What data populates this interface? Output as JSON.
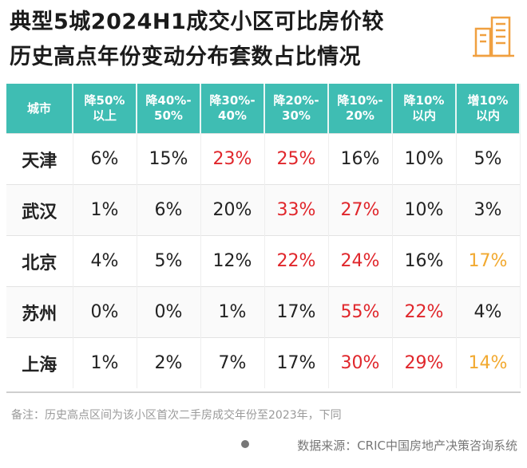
{
  "chart_data": {
    "type": "table",
    "title_line1": "典型5城2024H1成交小区可比房价较",
    "title_line2": "历史高点年份变动分布套数占比情况",
    "columns": [
      "城市",
      "降50%以上",
      "降40%-50%",
      "降30%-40%",
      "降20%-30%",
      "降10%-20%",
      "降10%以内",
      "增10%以内"
    ],
    "rows": [
      {
        "city": "天津",
        "values": [
          "6%",
          "15%",
          "23%",
          "25%",
          "16%",
          "10%",
          "5%"
        ],
        "highlight": [
          "",
          "",
          "red",
          "red",
          "",
          "",
          ""
        ]
      },
      {
        "city": "武汉",
        "values": [
          "1%",
          "6%",
          "20%",
          "33%",
          "27%",
          "10%",
          "3%"
        ],
        "highlight": [
          "",
          "",
          "",
          "red",
          "red",
          "",
          ""
        ]
      },
      {
        "city": "北京",
        "values": [
          "4%",
          "5%",
          "12%",
          "22%",
          "24%",
          "16%",
          "17%"
        ],
        "highlight": [
          "",
          "",
          "",
          "red",
          "red",
          "",
          "orange"
        ]
      },
      {
        "city": "苏州",
        "values": [
          "0%",
          "0%",
          "1%",
          "17%",
          "55%",
          "22%",
          "4%"
        ],
        "highlight": [
          "",
          "",
          "",
          "",
          "red",
          "red",
          ""
        ]
      },
      {
        "city": "上海",
        "values": [
          "1%",
          "2%",
          "7%",
          "17%",
          "30%",
          "29%",
          "14%"
        ],
        "highlight": [
          "",
          "",
          "",
          "",
          "red",
          "red",
          "orange"
        ]
      }
    ],
    "note": "备注：历史高点区间为该小区首次二手房成交年份至2023年，下同",
    "source": "数据来源：CRIC中国房地产决策咨询系统",
    "colors": {
      "header": "#3fbdb3",
      "red": "#e0262b",
      "orange": "#f2a92f"
    }
  }
}
